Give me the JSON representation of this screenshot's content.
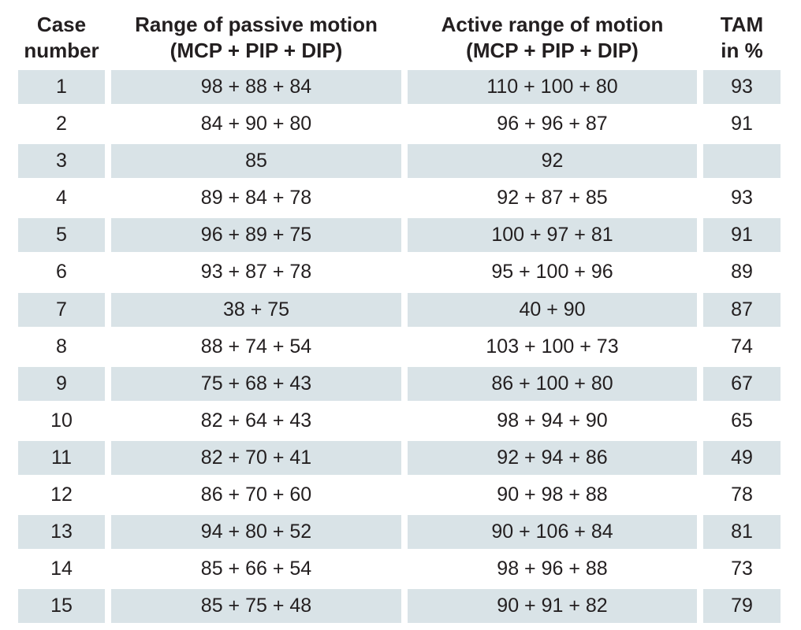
{
  "table": {
    "headers": [
      [
        "Case",
        "number"
      ],
      [
        "Range of passive motion",
        "(MCP + PIP + DIP)"
      ],
      [
        "Active range of motion",
        "(MCP + PIP + DIP)"
      ],
      [
        "TAM",
        "in %"
      ]
    ],
    "rows": [
      {
        "case": "1",
        "passive": "98 + 88 + 84",
        "active": "110 + 100 + 80",
        "tam": "93",
        "shaded": true
      },
      {
        "case": "2",
        "passive": "84 + 90 + 80",
        "active": "96 + 96 + 87",
        "tam": "91",
        "shaded": false
      },
      {
        "case": "3",
        "passive": "85",
        "active": "92",
        "tam": "",
        "shaded": true
      },
      {
        "case": "4",
        "passive": "89 + 84 + 78",
        "active": "92 + 87 + 85",
        "tam": "93",
        "shaded": false
      },
      {
        "case": "5",
        "passive": "96 + 89 + 75",
        "active": "100 + 97 + 81",
        "tam": "91",
        "shaded": true
      },
      {
        "case": "6",
        "passive": "93 + 87 + 78",
        "active": "95 + 100 + 96",
        "tam": "89",
        "shaded": false
      },
      {
        "case": "7",
        "passive": "38 + 75",
        "active": "40 + 90",
        "tam": "87",
        "shaded": true
      },
      {
        "case": "8",
        "passive": "88 + 74 + 54",
        "active": "103 + 100 + 73",
        "tam": "74",
        "shaded": false
      },
      {
        "case": "9",
        "passive": "75 + 68 + 43",
        "active": "86 + 100 + 80",
        "tam": "67",
        "shaded": true
      },
      {
        "case": "10",
        "passive": "82 + 64 + 43",
        "active": "98 + 94 + 90",
        "tam": "65",
        "shaded": false
      },
      {
        "case": "11",
        "passive": "82 + 70 + 41",
        "active": "92 + 94 + 86",
        "tam": "49",
        "shaded": true
      },
      {
        "case": "12",
        "passive": "86 + 70 + 60",
        "active": "90 + 98 + 88",
        "tam": "78",
        "shaded": false
      },
      {
        "case": "13",
        "passive": "94 + 80 + 52",
        "active": "90 + 106 + 84",
        "tam": "81",
        "shaded": true
      },
      {
        "case": "14",
        "passive": "85 + 66 + 54",
        "active": "98 + 96 + 88",
        "tam": "73",
        "shaded": false
      },
      {
        "case": "15",
        "passive": "85 + 75 + 48",
        "active": "90 + 91 + 82",
        "tam": "79",
        "shaded": true
      }
    ]
  },
  "colors": {
    "row_shade": "#d9e3e7",
    "text": "#231f20"
  }
}
